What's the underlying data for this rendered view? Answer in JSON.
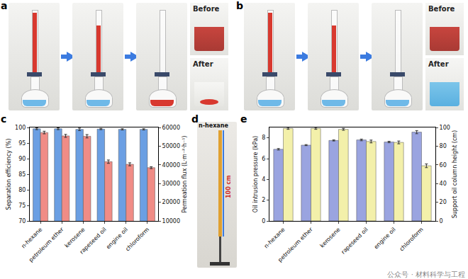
{
  "figure": {
    "panels": [
      {
        "label": "a",
        "inset_texts": [
          "Before",
          "After"
        ]
      },
      {
        "label": "b",
        "inset_texts": [
          "Before",
          "After"
        ]
      },
      {
        "label": "d",
        "texts": [
          "n-hexane",
          "100 cm"
        ]
      }
    ],
    "watermark": "公众号 · 材料科学与工程"
  },
  "chart_data": [
    {
      "label": "c",
      "type": "bar",
      "categories": [
        "n-hexane",
        "petroleum ether",
        "kerosene",
        "rapeseed oil",
        "engine oil",
        "chloroform"
      ],
      "y_label": "Separation efficiency (%)",
      "y2_label": "Permeation flux (L·m⁻²·h⁻¹)",
      "ylim": [
        70,
        100
      ],
      "yticks": [
        70,
        75,
        80,
        85,
        90,
        95,
        100
      ],
      "y2lim": [
        10000,
        60000
      ],
      "y2ticks": [
        10000,
        20000,
        30000,
        40000,
        50000,
        60000
      ],
      "grid": false,
      "series": [
        {
          "color": "#6b9fe3",
          "axis": "y",
          "values": [
            99.6,
            99.6,
            99.4,
            99.5,
            99.4,
            99.4
          ],
          "error": [
            0.3,
            0.3,
            0.4,
            0.2,
            0.2,
            0.2
          ]
        },
        {
          "color": "#f08c86",
          "axis": "y2",
          "values": [
            57300,
            55500,
            55300,
            41700,
            40300,
            38500
          ],
          "error": [
            700,
            800,
            900,
            900,
            800,
            500
          ]
        }
      ]
    },
    {
      "label": "e",
      "type": "bar",
      "categories": [
        "n-hexane",
        "petroleum ether",
        "kerosene",
        "rapeseed oil",
        "engine oil",
        "chloroform"
      ],
      "y_label": "Oil intrusion pressure (kPa)",
      "y2_label": "Support oil column height (cm)",
      "ylim": [
        0,
        9
      ],
      "yticks": [
        0,
        2,
        4,
        6,
        8
      ],
      "y2lim": [
        0,
        100
      ],
      "y2ticks": [
        0,
        20,
        40,
        60,
        80,
        100
      ],
      "grid": false,
      "series": [
        {
          "color": "#9aa4e0",
          "axis": "y",
          "values": [
            6.9,
            7.3,
            7.75,
            7.8,
            7.6,
            8.55
          ],
          "error": [
            0.07,
            0.05,
            0.05,
            0.08,
            0.07,
            0.15
          ]
        },
        {
          "color": "#f3f0aa",
          "axis": "y2",
          "values": [
            99,
            99,
            98,
            85,
            84,
            59
          ],
          "error": [
            1,
            1,
            1,
            1.5,
            1.5,
            2
          ]
        }
      ]
    }
  ]
}
